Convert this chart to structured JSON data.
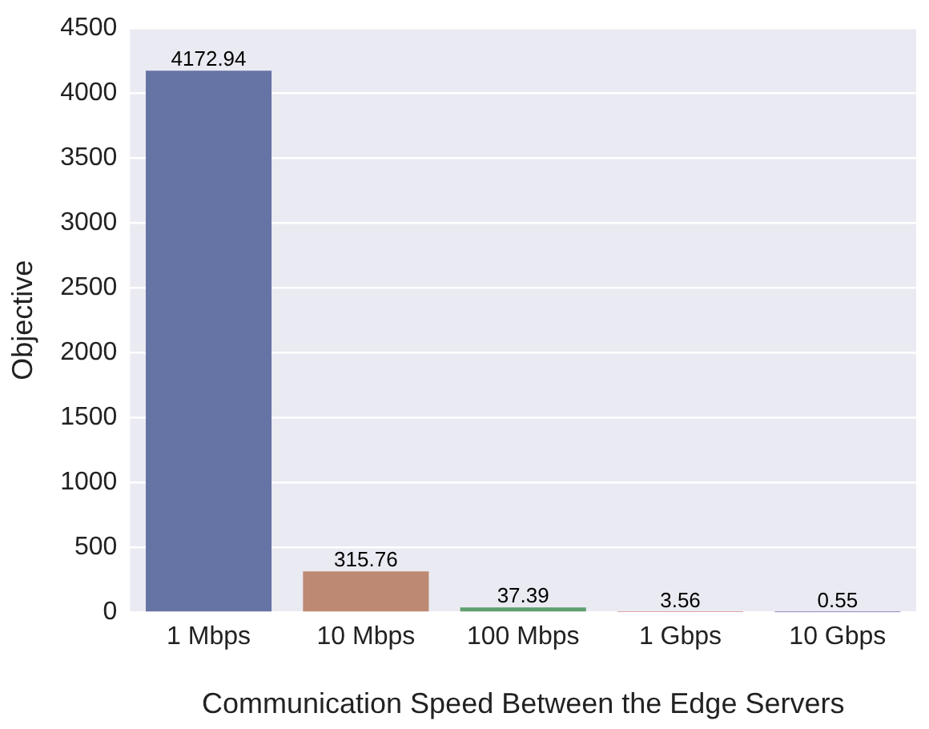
{
  "chart_data": {
    "type": "bar",
    "xlabel": "Communication Speed Between the Edge Servers",
    "ylabel": "Objective",
    "categories": [
      "1 Mbps",
      "10 Mbps",
      "100 Mbps",
      "1 Gbps",
      "10 Gbps"
    ],
    "values": [
      4172.94,
      315.76,
      37.39,
      3.56,
      0.55
    ],
    "colors": [
      "#6673a5",
      "#bd8973",
      "#5f9e6e",
      "#c44e52",
      "#8172b3"
    ],
    "ylim": [
      0,
      4500
    ],
    "yticks": [
      0,
      500,
      1000,
      1500,
      2000,
      2500,
      3000,
      3500,
      4000,
      4500
    ],
    "grid": "y",
    "data_labels": true,
    "legend": false
  }
}
